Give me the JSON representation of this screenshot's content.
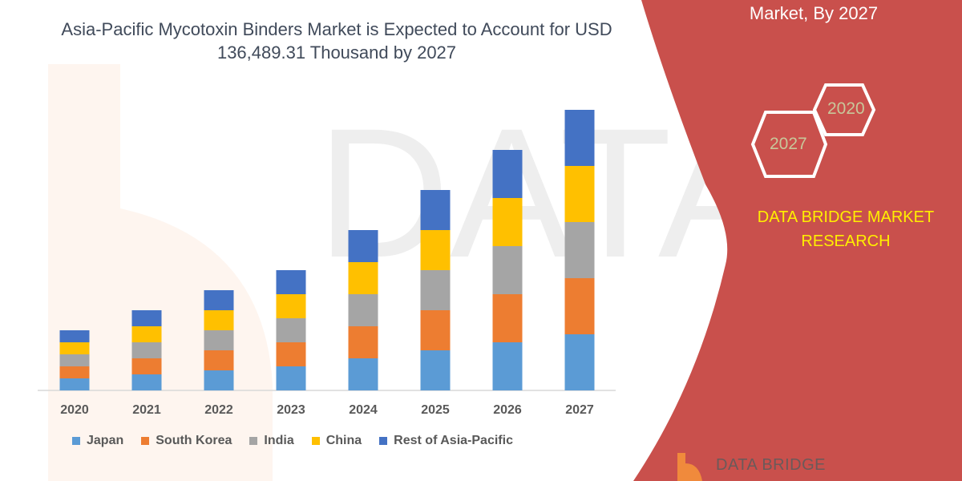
{
  "header": {
    "title": "Asia-Pacific Mycotoxin Binders Market is Expected to Account for USD 136,489.31 Thousand  by 2027",
    "side_title": "Market, By 2027"
  },
  "side_panel": {
    "hex_labels": [
      "2020",
      "2027"
    ],
    "brand_text": "DATA BRIDGE MARKET RESEARCH",
    "logo_text": "DATA BRIDGE",
    "panel_color": "#c9504c",
    "brand_color": "#ffef00"
  },
  "chart_data": {
    "type": "bar",
    "stacked": true,
    "title": "Asia-Pacific Mycotoxin Binders Market is Expected to Account for USD 136,489.31 Thousand  by 2027",
    "xlabel": "",
    "ylabel": "",
    "y_axis_shown": false,
    "grid": false,
    "legend_position": "bottom",
    "categories": [
      "2020",
      "2021",
      "2022",
      "2023",
      "2024",
      "2025",
      "2026",
      "2027"
    ],
    "series": [
      {
        "name": "Japan",
        "color": "#5b9bd5",
        "values": [
          15,
          20,
          25,
          30,
          40,
          50,
          60,
          70
        ]
      },
      {
        "name": "South Korea",
        "color": "#ed7d31",
        "values": [
          15,
          20,
          25,
          30,
          40,
          50,
          60,
          70
        ]
      },
      {
        "name": "India",
        "color": "#a5a5a5",
        "values": [
          15,
          20,
          25,
          30,
          40,
          50,
          60,
          70
        ]
      },
      {
        "name": "China",
        "color": "#ffc000",
        "values": [
          15,
          20,
          25,
          30,
          40,
          50,
          60,
          70
        ]
      },
      {
        "name": "Rest of Asia-Pacific",
        "color": "#4472c4",
        "values": [
          15,
          20,
          25,
          30,
          40,
          50,
          60,
          70
        ]
      }
    ]
  }
}
